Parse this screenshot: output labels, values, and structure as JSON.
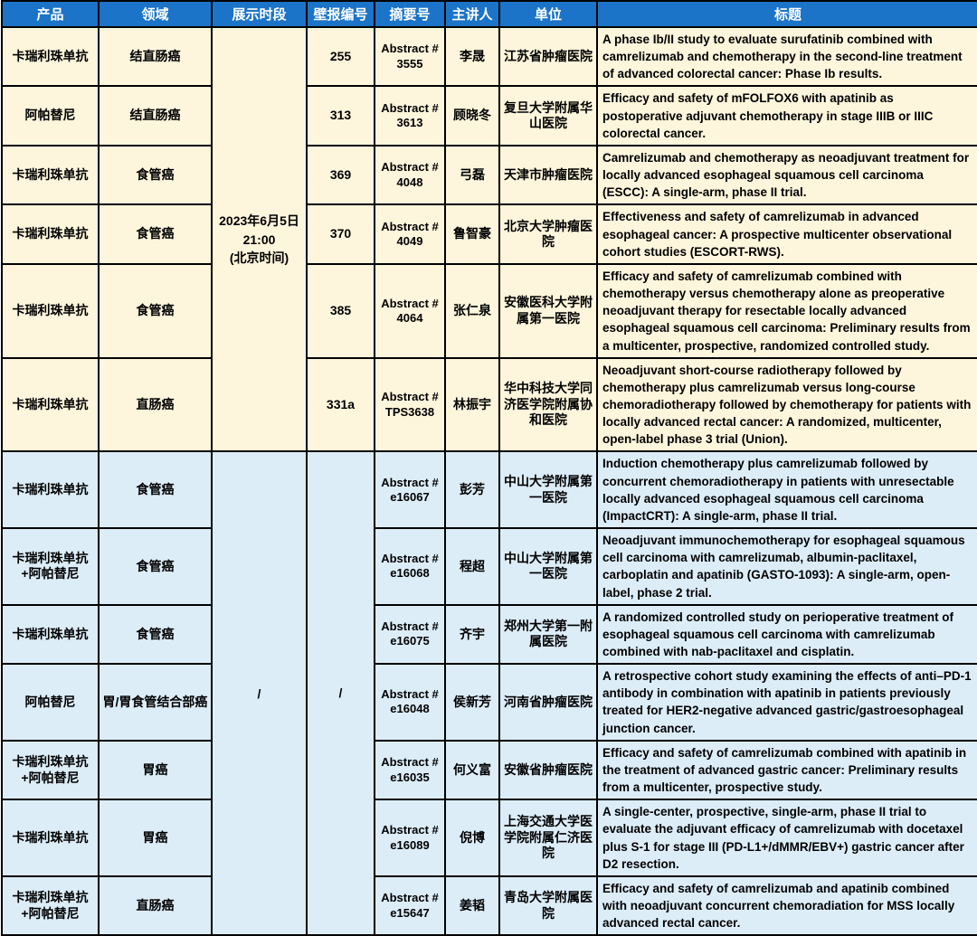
{
  "colors": {
    "header_bg": "#1b74c8",
    "header_text": "#ffffff",
    "section_poster_bg": "#fdf5dc",
    "section_online_bg": "#dcedf8",
    "border": "#000000",
    "text": "#000000"
  },
  "table": {
    "columns": [
      {
        "key": "product",
        "label": "产品"
      },
      {
        "key": "field",
        "label": "领域"
      },
      {
        "key": "period",
        "label": "展示时段"
      },
      {
        "key": "poster-no",
        "label": "壁报编号"
      },
      {
        "key": "abstract-no",
        "label": "摘要号"
      },
      {
        "key": "speaker",
        "label": "主讲人"
      },
      {
        "key": "institution",
        "label": "单位"
      },
      {
        "key": "title",
        "label": "标题"
      }
    ],
    "sections": [
      {
        "name": "poster-session",
        "display_period": "2023年6月5日\n21:00\n(北京时间)",
        "rows": [
          {
            "product": "卡瑞利珠单抗",
            "field": "结直肠癌",
            "poster_no": "255",
            "abstract_no": "Abstract #\n3555",
            "speaker": "李晟",
            "institution": "江苏省肿瘤医院",
            "title": "A phase Ib/II study to evaluate surufatinib combined with camrelizumab and chemotherapy in the second-line treatment of advanced colorectal cancer: Phase Ib results."
          },
          {
            "product": "阿帕替尼",
            "field": "结直肠癌",
            "poster_no": "313",
            "abstract_no": "Abstract #\n3613",
            "speaker": "顾晓冬",
            "institution": "复旦大学附属华山医院",
            "title": "Efficacy and safety of mFOLFOX6 with apatinib as postoperative adjuvant chemotherapy in stage IIIB or IIIC colorectal cancer."
          },
          {
            "product": "卡瑞利珠单抗",
            "field": "食管癌",
            "poster_no": "369",
            "abstract_no": "Abstract #\n4048",
            "speaker": "弓磊",
            "institution": "天津市肿瘤医院",
            "title": "Camrelizumab and chemotherapy as neoadjuvant treatment for locally advanced esophageal squamous cell carcinoma (ESCC): A single-arm, phase II trial."
          },
          {
            "product": "卡瑞利珠单抗",
            "field": "食管癌",
            "poster_no": "370",
            "abstract_no": "Abstract #\n4049",
            "speaker": "鲁智豪",
            "institution": "北京大学肿瘤医院",
            "title": "Effectiveness and safety of camrelizumab in advanced esophageal cancer: A prospective multicenter observational cohort studies (ESCORT-RWS)."
          },
          {
            "product": "卡瑞利珠单抗",
            "field": "食管癌",
            "poster_no": "385",
            "abstract_no": "Abstract #\n4064",
            "speaker": "张仁泉",
            "institution": "安徽医科大学附属第一医院",
            "title": "Efficacy and safety of camrelizumab combined with chemotherapy versus chemotherapy alone as preoperative neoadjuvant therapy for resectable locally advanced esophageal squamous cell carcinoma: Preliminary results from a multicenter, prospective, randomized controlled study."
          },
          {
            "product": "卡瑞利珠单抗",
            "field": "直肠癌",
            "poster_no": "331a",
            "abstract_no": "Abstract #\nTPS3638",
            "speaker": "林振宇",
            "institution": "华中科技大学同济医学院附属协和医院",
            "title": "Neoadjuvant short-course radiotherapy followed by chemotherapy plus camrelizumab versus long-course chemoradiotherapy followed by chemotherapy for patients with locally advanced rectal cancer: A randomized, multicenter, open-label phase 3 trial (Union)."
          }
        ]
      },
      {
        "name": "online-only",
        "display_period": "/",
        "poster_no": "/",
        "rows": [
          {
            "product": "卡瑞利珠单抗",
            "field": "食管癌",
            "abstract_no": "Abstract #\ne16067",
            "speaker": "彭芳",
            "institution": "中山大学附属第一医院",
            "title": "Induction chemotherapy plus camrelizumab followed by concurrent chemoradiotherapy in patients with unresectable locally advanced esophageal squamous cell carcinoma (ImpactCRT): A single-arm, phase II trial."
          },
          {
            "product": "卡瑞利珠单抗\n+阿帕替尼",
            "field": "食管癌",
            "abstract_no": "Abstract #\ne16068",
            "speaker": "程超",
            "institution": "中山大学附属第一医院",
            "title": "Neoadjuvant immunochemotherapy for esophageal squamous cell carcinoma with camrelizumab, albumin-paclitaxel, carboplatin and apatinib (GASTO-1093): A single-arm, open-label, phase 2 trial."
          },
          {
            "product": "卡瑞利珠单抗",
            "field": "食管癌",
            "abstract_no": "Abstract #\ne16075",
            "speaker": "齐宇",
            "institution": "郑州大学第一附属医院",
            "title": "A randomized controlled study on perioperative treatment of esophageal squamous cell carcinoma with camrelizumab combined with nab-paclitaxel and cisplatin."
          },
          {
            "product": "阿帕替尼",
            "field": "胃/胃食管结合部癌",
            "abstract_no": "Abstract #\ne16048",
            "speaker": "侯新芳",
            "institution": "河南省肿瘤医院",
            "title": "A retrospective cohort study examining the effects of anti–PD-1 antibody in combination with apatinib in patients previously treated for HER2-negative advanced gastric/gastroesophageal junction cancer."
          },
          {
            "product": "卡瑞利珠单抗\n+阿帕替尼",
            "field": "胃癌",
            "abstract_no": "Abstract #\ne16035",
            "speaker": "何义富",
            "institution": "安徽省肿瘤医院",
            "title": "Efficacy and safety of camrelizumab combined with apatinib in the treatment of advanced gastric cancer: Preliminary results from a multicenter, prospective study."
          },
          {
            "product": "卡瑞利珠单抗",
            "field": "胃癌",
            "abstract_no": "Abstract #\ne16089",
            "speaker": "倪博",
            "institution": "上海交通大学医学院附属仁济医院",
            "title": "A single-center, prospective, single-arm, phase II trial to evaluate the adjuvant efficacy of camrelizumab with docetaxel plus S-1 for stage III (PD-L1+/dMMR/EBV+) gastric cancer after D2 resection."
          },
          {
            "product": "卡瑞利珠单抗\n+阿帕替尼",
            "field": "直肠癌",
            "abstract_no": "Abstract #\ne15647",
            "speaker": "姜韬",
            "institution": "青岛大学附属医院",
            "title": "Efficacy and safety of camrelizumab and apatinib combined with neoadjuvant concurrent chemoradiation for MSS locally advanced rectal cancer."
          }
        ]
      }
    ]
  }
}
